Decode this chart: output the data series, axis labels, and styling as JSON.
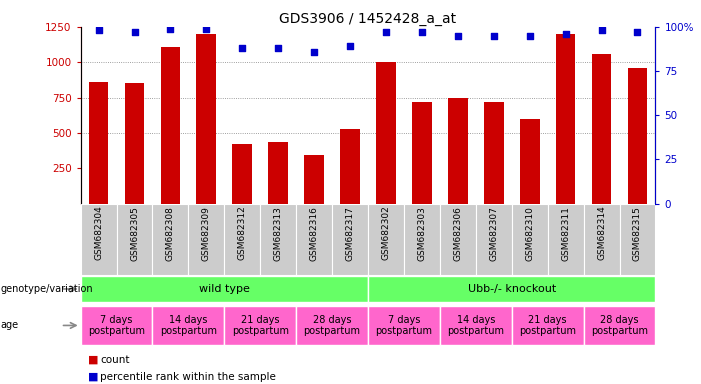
{
  "title": "GDS3906 / 1452428_a_at",
  "samples": [
    "GSM682304",
    "GSM682305",
    "GSM682308",
    "GSM682309",
    "GSM682312",
    "GSM682313",
    "GSM682316",
    "GSM682317",
    "GSM682302",
    "GSM682303",
    "GSM682306",
    "GSM682307",
    "GSM682310",
    "GSM682311",
    "GSM682314",
    "GSM682315"
  ],
  "bar_values": [
    860,
    855,
    1110,
    1200,
    420,
    435,
    340,
    530,
    1005,
    720,
    745,
    720,
    600,
    1200,
    1055,
    960
  ],
  "percentile_values": [
    98,
    97,
    99,
    99,
    88,
    88,
    86,
    89,
    97,
    97,
    95,
    95,
    95,
    96,
    98,
    97
  ],
  "bar_color": "#CC0000",
  "dot_color": "#0000CC",
  "ylim_left": [
    0,
    1250
  ],
  "ylim_right": [
    0,
    100
  ],
  "yticks_left": [
    250,
    500,
    750,
    1000,
    1250
  ],
  "yticks_right": [
    0,
    25,
    50,
    75,
    100
  ],
  "ytick_labels_right": [
    "0",
    "25",
    "50",
    "75",
    "100%"
  ],
  "grid_values": [
    500,
    750,
    1000
  ],
  "genotype_groups": [
    {
      "label": "wild type",
      "start": 0,
      "end": 8,
      "color": "#66FF66"
    },
    {
      "label": "Ubb-/- knockout",
      "start": 8,
      "end": 16,
      "color": "#66FF66"
    }
  ],
  "age_groups": [
    {
      "label": "7 days\npostpartum",
      "start": 0,
      "end": 2
    },
    {
      "label": "14 days\npostpartum",
      "start": 2,
      "end": 4
    },
    {
      "label": "21 days\npostpartum",
      "start": 4,
      "end": 6
    },
    {
      "label": "28 days\npostpartum",
      "start": 6,
      "end": 8
    },
    {
      "label": "7 days\npostpartum",
      "start": 8,
      "end": 10
    },
    {
      "label": "14 days\npostpartum",
      "start": 10,
      "end": 12
    },
    {
      "label": "21 days\npostpartum",
      "start": 12,
      "end": 14
    },
    {
      "label": "28 days\npostpartum",
      "start": 14,
      "end": 16
    }
  ],
  "age_color": "#FF66CC",
  "genotype_color": "#66FF66",
  "sample_bg_color": "#CCCCCC",
  "xlabel_genotype": "genotype/variation",
  "xlabel_age": "age",
  "bar_width": 0.55,
  "sample_label_fontsize": 6.5,
  "title_fontsize": 10,
  "annot_fontsize": 8,
  "age_fontsize": 7
}
